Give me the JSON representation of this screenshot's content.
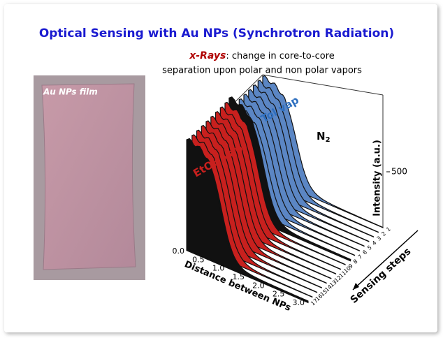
{
  "slide": {
    "title": "Optical Sensing with Au NPs (Synchrotron Radiation)",
    "subtitle": {
      "highlight": "x-Rays",
      "line1": ": change in core-to-core",
      "line2": "separation upon polar and non polar vapors"
    },
    "photo": {
      "label": "Au NPs film"
    },
    "figure": {
      "labels": {
        "toluene": "Tol vap",
        "nitrogen": "N",
        "nitrogen_sub": "2",
        "ethanol": "EtOH vap"
      },
      "x_axis": {
        "title": "Distance between NPs",
        "ticks": [
          "0.0",
          "0.5",
          "1.0",
          "1.5",
          "2.0",
          "2.5",
          "3.0"
        ]
      },
      "y_axis": {
        "title": "Sensing steps",
        "ticks": [
          1,
          2,
          3,
          4,
          5,
          6,
          7,
          8,
          9,
          10,
          11,
          12,
          13,
          14,
          15,
          16,
          17
        ]
      },
      "z_axis": {
        "title": "Intensity (a.u.)",
        "tick": "500"
      }
    }
  }
}
